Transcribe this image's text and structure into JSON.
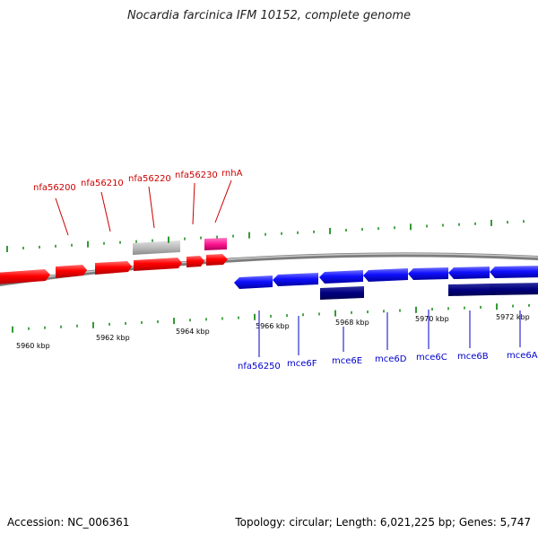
{
  "title": "Nocardia farcinica IFM 10152, complete genome",
  "footer": {
    "accession": "Accession: NC_006361",
    "stats": "Topology: circular; Length: 6,021,225 bp; Genes: 5,747"
  },
  "colors": {
    "forward_gene": "#ff0000",
    "forward_gene_dark": "#c00000",
    "reverse_gene": "#1010ff",
    "reverse_gene_dark": "#0000a0",
    "rna_like_dark_blue": "#000080",
    "pseudo_gray": "#bbbbbb",
    "magenta_gene": "#ff1493",
    "tick_green": "#008000",
    "backbone": "#8a8a8a",
    "forward_label": "#cc0000",
    "reverse_label": "#0000cc"
  },
  "scale_labels": [
    {
      "text": "5960 kbp"
    },
    {
      "text": "5962 kbp"
    },
    {
      "text": "5964 kbp"
    },
    {
      "text": "5966 kbp"
    },
    {
      "text": "5968 kbp"
    },
    {
      "text": "5970 kbp"
    },
    {
      "text": "5972 kbp"
    }
  ],
  "forward_labels": [
    {
      "text": "nfa56200"
    },
    {
      "text": "nfa56210"
    },
    {
      "text": "nfa56220"
    },
    {
      "text": "nfa56230"
    },
    {
      "text": "rnhA"
    }
  ],
  "reverse_labels": [
    {
      "text": "nfa56250"
    },
    {
      "text": "mce6F"
    },
    {
      "text": "mce6E"
    },
    {
      "text": "mce6D"
    },
    {
      "text": "mce6C"
    },
    {
      "text": "mce6B"
    },
    {
      "text": "mce6A"
    }
  ]
}
